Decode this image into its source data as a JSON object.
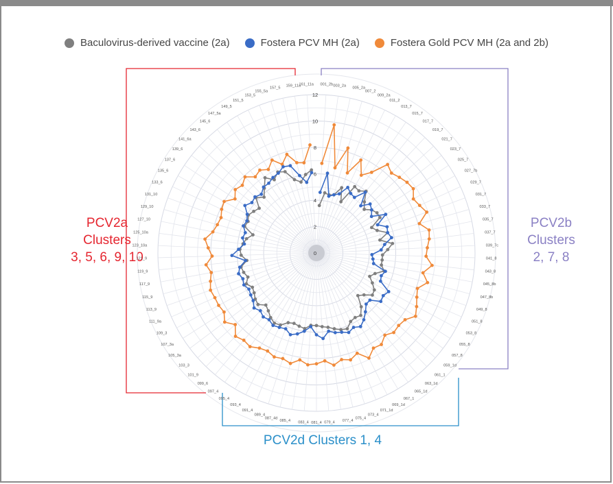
{
  "colors": {
    "baculovirus": "#7f7f7f",
    "fostera": "#3a6cc6",
    "gold": "#f08a3a",
    "pcv2a": "#e5252f",
    "pcv2b": "#8a80c4",
    "pcv2d": "#2a8fc9"
  },
  "legend": [
    {
      "label": "Baculovirus-derived vaccine (2a)",
      "color": "#7f7f7f"
    },
    {
      "label": "Fostera PCV MH (2a)",
      "color": "#3a6cc6"
    },
    {
      "label": "Fostera Gold PCV MH (2a and 2b)",
      "color": "#f08a3a"
    }
  ],
  "groups": {
    "pcv2a": {
      "line1": "PCV2a",
      "line2": "Clusters",
      "line3": "3, 5, 6, 9, 10"
    },
    "pcv2b": {
      "line1": "PCV2b",
      "line2": "Clusters",
      "line3": "2, 7, 8"
    },
    "pcv2d": {
      "line1": "PCV2d Clusters 1, 4"
    }
  },
  "chart_data": {
    "type": "radar",
    "radial_axis": {
      "min": 0,
      "max": 12,
      "ticks": [
        0,
        2,
        4,
        6,
        8,
        10,
        12
      ]
    },
    "categories": [
      "001_2b",
      "003_2a",
      "005_2a",
      "007_2",
      "009_2a",
      "011_2",
      "013_7",
      "015_7",
      "017_7",
      "019_7",
      "021_7",
      "023_7",
      "025_7",
      "027_7b",
      "029_7",
      "031_7",
      "033_7",
      "035_7",
      "037_7",
      "039_7c",
      "041_8",
      "043_8",
      "045_8b",
      "047_8b",
      "049_8",
      "051_8",
      "053_8",
      "055_8",
      "057_8",
      "059_1d",
      "061_1",
      "063_1d",
      "065_1d",
      "067_1",
      "069_1d",
      "071_1d",
      "073_4",
      "075_4",
      "077_4",
      "079_4",
      "081_4",
      "083_4",
      "085_4",
      "087_4d",
      "089_4",
      "091_4",
      "093_4",
      "095_4",
      "097_4",
      "099_6",
      "101_9",
      "103_3",
      "105_3a",
      "107_3a",
      "109_3",
      "111_9a",
      "113_9",
      "115_9",
      "117_9",
      "119_9",
      "121_9",
      "123_10a",
      "125_10a",
      "127_10",
      "129_10",
      "131_10",
      "133_6",
      "135_6",
      "137_6",
      "139_6",
      "141_6a",
      "143_6",
      "145_6",
      "147_5a",
      "149_5",
      "151_5",
      "153_5",
      "155_5a",
      "157_5",
      "159_11a",
      "161_11a"
    ],
    "series": [
      {
        "name": "Baculovirus-derived vaccine (2a)",
        "values": [
          3.6,
          4.6,
          4.5,
          4.6,
          5.3,
          4.3,
          5.8,
          5.7,
          6.0,
          5.3,
          4.9,
          5.3,
          5.5,
          5.5,
          4.6,
          4.9,
          5.6,
          4.9,
          5.8,
          5.4,
          5.0,
          5.0,
          5.0,
          5.3,
          4.7,
          4.4,
          4.8,
          5.2,
          5.3,
          4.8,
          4.5,
          5.3,
          5.8,
          5.7,
          5.8,
          6.2,
          6.1,
          5.9,
          5.7,
          5.6,
          5.5,
          5.5,
          5.8,
          5.7,
          5.6,
          5.7,
          6.1,
          6.2,
          6.0,
          5.7,
          5.5,
          5.9,
          5.8,
          5.6,
          5.5,
          5.8,
          5.5,
          5.7,
          5.8,
          5.3,
          5.7,
          5.8,
          5.6,
          5.4,
          5.0,
          5.8,
          5.7,
          5.9,
          5.7,
          5.5,
          6.2,
          5.8,
          6.3,
          6.9,
          6.4,
          6.8,
          6.6,
          5.8,
          5.5,
          6.0,
          6.3
        ]
      },
      {
        "name": "Fostera PCV MH (2a)",
        "values": [
          4.6,
          6.1,
          4.4,
          4.6,
          4.8,
          5.5,
          5.2,
          5.1,
          5.9,
          4.9,
          5.5,
          5.3,
          5.0,
          6.0,
          5.1,
          5.7,
          5.6,
          5.8,
          5.2,
          4.9,
          4.2,
          4.3,
          4.4,
          5.4,
          5.2,
          5.3,
          6.2,
          6.0,
          6.1,
          5.4,
          5.4,
          5.8,
          6.2,
          6.5,
          6.3,
          6.5,
          6.3,
          6.2,
          6.0,
          6.5,
          6.2,
          5.6,
          6.0,
          6.3,
          6.5,
          6.2,
          6.3,
          6.4,
          6.2,
          6.3,
          6.1,
          6.3,
          6.0,
          5.9,
          5.8,
          6.0,
          5.9,
          6.1,
          5.9,
          5.4,
          6.4,
          5.9,
          5.5,
          5.7,
          5.6,
          5.9,
          5.8,
          6.0,
          6.5,
          6.2,
          6.3,
          6.1,
          6.4,
          6.4,
          6.6,
          6.7,
          7.0,
          6.9,
          6.0,
          5.4,
          6.1
        ]
      },
      {
        "name": "Fostera Gold PCV MH (2a and 2b)",
        "values": [
          6.8,
          9.8,
          6.6,
          8.3,
          6.5,
          7.8,
          6.8,
          7.4,
          8.6,
          8.3,
          8.5,
          8.7,
          8.8,
          8.4,
          8.6,
          8.9,
          8.1,
          8.7,
          8.6,
          8.4,
          8.3,
          8.8,
          8.2,
          8.7,
          8.1,
          8.3,
          8.6,
          8.9,
          8.4,
          8.3,
          8.4,
          8.1,
          8.5,
          8.4,
          8.9,
          8.2,
          8.5,
          8.3,
          8.6,
          8.2,
          8.4,
          8.5,
          8.2,
          8.6,
          8.4,
          8.5,
          8.3,
          8.4,
          8.7,
          8.6,
          8.8,
          8.2,
          8.7,
          8.3,
          8.4,
          8.4,
          8.5,
          8.3,
          8.1,
          8.4,
          7.9,
          8.2,
          8.5,
          8.0,
          7.8,
          7.7,
          7.9,
          8.0,
          7.4,
          7.8,
          7.6,
          7.9,
          7.4,
          7.6,
          7.3,
          7.8,
          7.2,
          7.8,
          7.0,
          6.9,
          8.2
        ]
      }
    ],
    "grid": true,
    "legend_position": "top"
  }
}
